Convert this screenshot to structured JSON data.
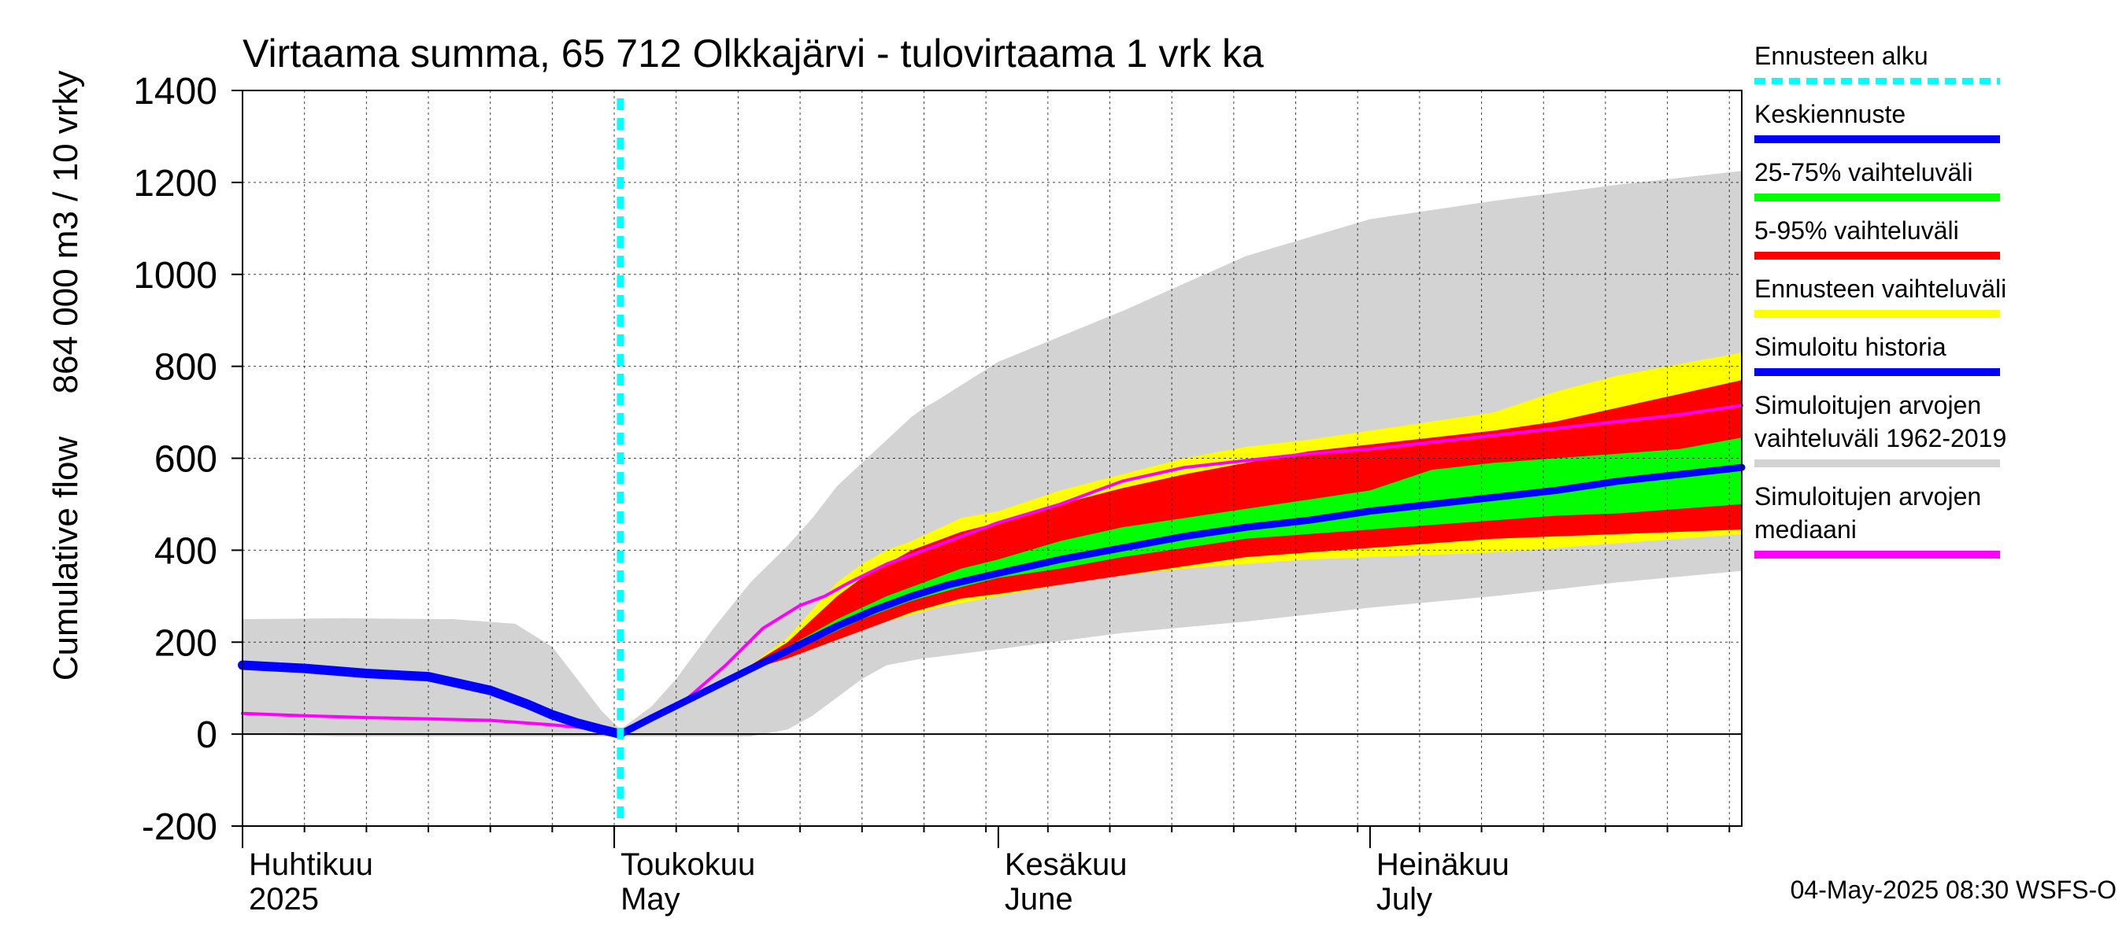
{
  "chart_data": {
    "type": "area",
    "title": "Virtaama summa, 65 712 Olkkajärvi - tulovirtaama 1 vrk ka",
    "ylabel_line1": "Cumulative flow",
    "ylabel_line2": "864 000 m3 / 10 vrky",
    "ylim": [
      -200,
      1400
    ],
    "yticks": [
      -200,
      0,
      200,
      400,
      600,
      800,
      1000,
      1200,
      1400
    ],
    "x_range_days": [
      0,
      121
    ],
    "grid": true,
    "legend_position": "right",
    "x_month_labels": [
      {
        "line1": "Huhtikuu",
        "line2": "2025",
        "day": 0
      },
      {
        "line1": "Toukokuu",
        "line2": "May",
        "day": 30
      },
      {
        "line1": "Kesäkuu",
        "line2": "June",
        "day": 61
      },
      {
        "line1": "Heinäkuu",
        "line2": "July",
        "day": 91
      }
    ],
    "forecast_start_day": 30.5,
    "series": [
      {
        "key": "hist_range",
        "name": "Simuloitujen arvojen vaihteluväli 1962-2019",
        "color": "#d3d3d3",
        "x": [
          0,
          8,
          17,
          22,
          25,
          27,
          29,
          30.5,
          33,
          35,
          38,
          41,
          44,
          46,
          48,
          50,
          52,
          54,
          55,
          56,
          61,
          71,
          81,
          91,
          101,
          111,
          121
        ],
        "upper": [
          250,
          252,
          250,
          240,
          190,
          120,
          50,
          10,
          60,
          120,
          230,
          330,
          410,
          470,
          540,
          590,
          640,
          690,
          710,
          725,
          810,
          920,
          1040,
          1120,
          1160,
          1195,
          1225
        ],
        "lower": [
          0,
          -5,
          -5,
          -5,
          -5,
          -5,
          -5,
          -5,
          -5,
          -5,
          -5,
          -5,
          10,
          40,
          80,
          120,
          150,
          160,
          165,
          168,
          185,
          220,
          245,
          275,
          300,
          330,
          355
        ]
      },
      {
        "key": "forecast_range",
        "name": "Ennusteen vaihteluväli",
        "color": "#ffff00",
        "x": [
          30.5,
          35,
          38,
          41,
          44,
          46,
          48,
          50,
          52,
          54,
          56,
          58,
          61,
          66,
          71,
          76,
          81,
          86,
          91,
          96,
          101,
          106,
          111,
          116,
          121
        ],
        "upper": [
          0,
          70,
          110,
          150,
          210,
          270,
          330,
          370,
          400,
          420,
          445,
          470,
          485,
          530,
          565,
          600,
          625,
          640,
          660,
          680,
          700,
          745,
          780,
          805,
          830
        ],
        "lower": [
          0,
          70,
          110,
          140,
          170,
          185,
          205,
          225,
          245,
          260,
          275,
          285,
          300,
          325,
          345,
          360,
          370,
          380,
          385,
          390,
          395,
          405,
          415,
          425,
          435
        ]
      },
      {
        "key": "p5_95",
        "name": "5-95% vaihteluväli",
        "color": "#ff0000",
        "x": [
          30.5,
          35,
          38,
          41,
          44,
          46,
          48,
          50,
          52,
          54,
          56,
          58,
          61,
          66,
          71,
          76,
          81,
          86,
          91,
          96,
          101,
          106,
          111,
          116,
          121
        ],
        "upper": [
          0,
          70,
          110,
          150,
          200,
          250,
          300,
          340,
          370,
          400,
          420,
          440,
          460,
          500,
          535,
          565,
          590,
          615,
          630,
          645,
          660,
          680,
          710,
          740,
          770
        ],
        "lower": [
          0,
          70,
          110,
          140,
          165,
          185,
          205,
          225,
          245,
          265,
          280,
          295,
          305,
          325,
          345,
          365,
          385,
          395,
          405,
          415,
          425,
          430,
          435,
          440,
          445
        ]
      },
      {
        "key": "p25_75",
        "name": "25-75% vaihteluväli",
        "color": "#00ff00",
        "x": [
          30.5,
          35,
          38,
          41,
          44,
          46,
          48,
          50,
          52,
          54,
          56,
          58,
          61,
          66,
          71,
          76,
          81,
          86,
          91,
          96,
          101,
          106,
          111,
          116,
          121
        ],
        "upper": [
          0,
          70,
          110,
          150,
          190,
          220,
          250,
          275,
          300,
          320,
          340,
          360,
          380,
          420,
          450,
          470,
          490,
          510,
          530,
          575,
          590,
          600,
          610,
          620,
          645
        ],
        "lower": [
          0,
          70,
          110,
          145,
          175,
          200,
          225,
          250,
          270,
          290,
          305,
          320,
          340,
          360,
          385,
          405,
          425,
          435,
          445,
          455,
          465,
          475,
          480,
          490,
          500
        ]
      }
    ],
    "lines": [
      {
        "key": "median",
        "name": "Simuloitujen arvojen mediaani",
        "color": "#ff00ff",
        "width": 4,
        "x": [
          0,
          5,
          10,
          15,
          20,
          25,
          29,
          30.5,
          33,
          36,
          39,
          42,
          45,
          47,
          49,
          52,
          55,
          58,
          61,
          66,
          71,
          76,
          81,
          86,
          91,
          96,
          101,
          106,
          111,
          116,
          121
        ],
        "y": [
          45,
          40,
          36,
          33,
          30,
          20,
          10,
          0,
          30,
          80,
          150,
          230,
          280,
          300,
          330,
          370,
          400,
          430,
          460,
          500,
          550,
          580,
          595,
          610,
          620,
          635,
          650,
          665,
          680,
          695,
          715
        ]
      },
      {
        "key": "simulated_history",
        "name": "Simuloitu historia",
        "color": "#0000ff",
        "width": 12,
        "x": [
          0,
          5,
          10,
          15,
          20,
          23,
          25,
          27,
          29,
          30.5
        ],
        "y": [
          150,
          143,
          132,
          125,
          95,
          65,
          42,
          24,
          10,
          0
        ]
      },
      {
        "key": "mean_forecast",
        "name": "Keskiennuste",
        "color": "#0000ff",
        "width": 9,
        "x": [
          30.5,
          33,
          36,
          39,
          42,
          45,
          48,
          51,
          54,
          57,
          61,
          66,
          71,
          76,
          81,
          86,
          91,
          96,
          101,
          106,
          111,
          116,
          121
        ],
        "y": [
          0,
          35,
          75,
          115,
          155,
          195,
          235,
          270,
          300,
          325,
          350,
          380,
          405,
          430,
          450,
          465,
          485,
          500,
          515,
          530,
          550,
          565,
          580
        ]
      }
    ],
    "legend": [
      {
        "label": "Ennusteen alku",
        "color": "#00ffff",
        "style": "dashed"
      },
      {
        "label": "Keskiennuste",
        "color": "#0000ff",
        "style": "line"
      },
      {
        "label": "25-75% vaihteluväli",
        "color": "#00ff00",
        "style": "line"
      },
      {
        "label": "5-95% vaihteluväli",
        "color": "#ff0000",
        "style": "line"
      },
      {
        "label": "Ennusteen vaihteluväli",
        "color": "#ffff00",
        "style": "line"
      },
      {
        "label": "Simuloitu historia",
        "color": "#0000ff",
        "style": "line"
      },
      {
        "label": "Simuloitujen arvojen vaihteluväli 1962-2019",
        "color": "#d3d3d3",
        "style": "line",
        "lines": [
          "Simuloitujen arvojen",
          "vaihteluväli 1962-2019"
        ]
      },
      {
        "label": "Simuloitujen arvojen mediaani",
        "color": "#ff00ff",
        "style": "line",
        "lines": [
          "Simuloitujen arvojen",
          "mediaani"
        ]
      }
    ]
  },
  "footer": {
    "timestamp": "04-May-2025 08:30 WSFS-O"
  }
}
